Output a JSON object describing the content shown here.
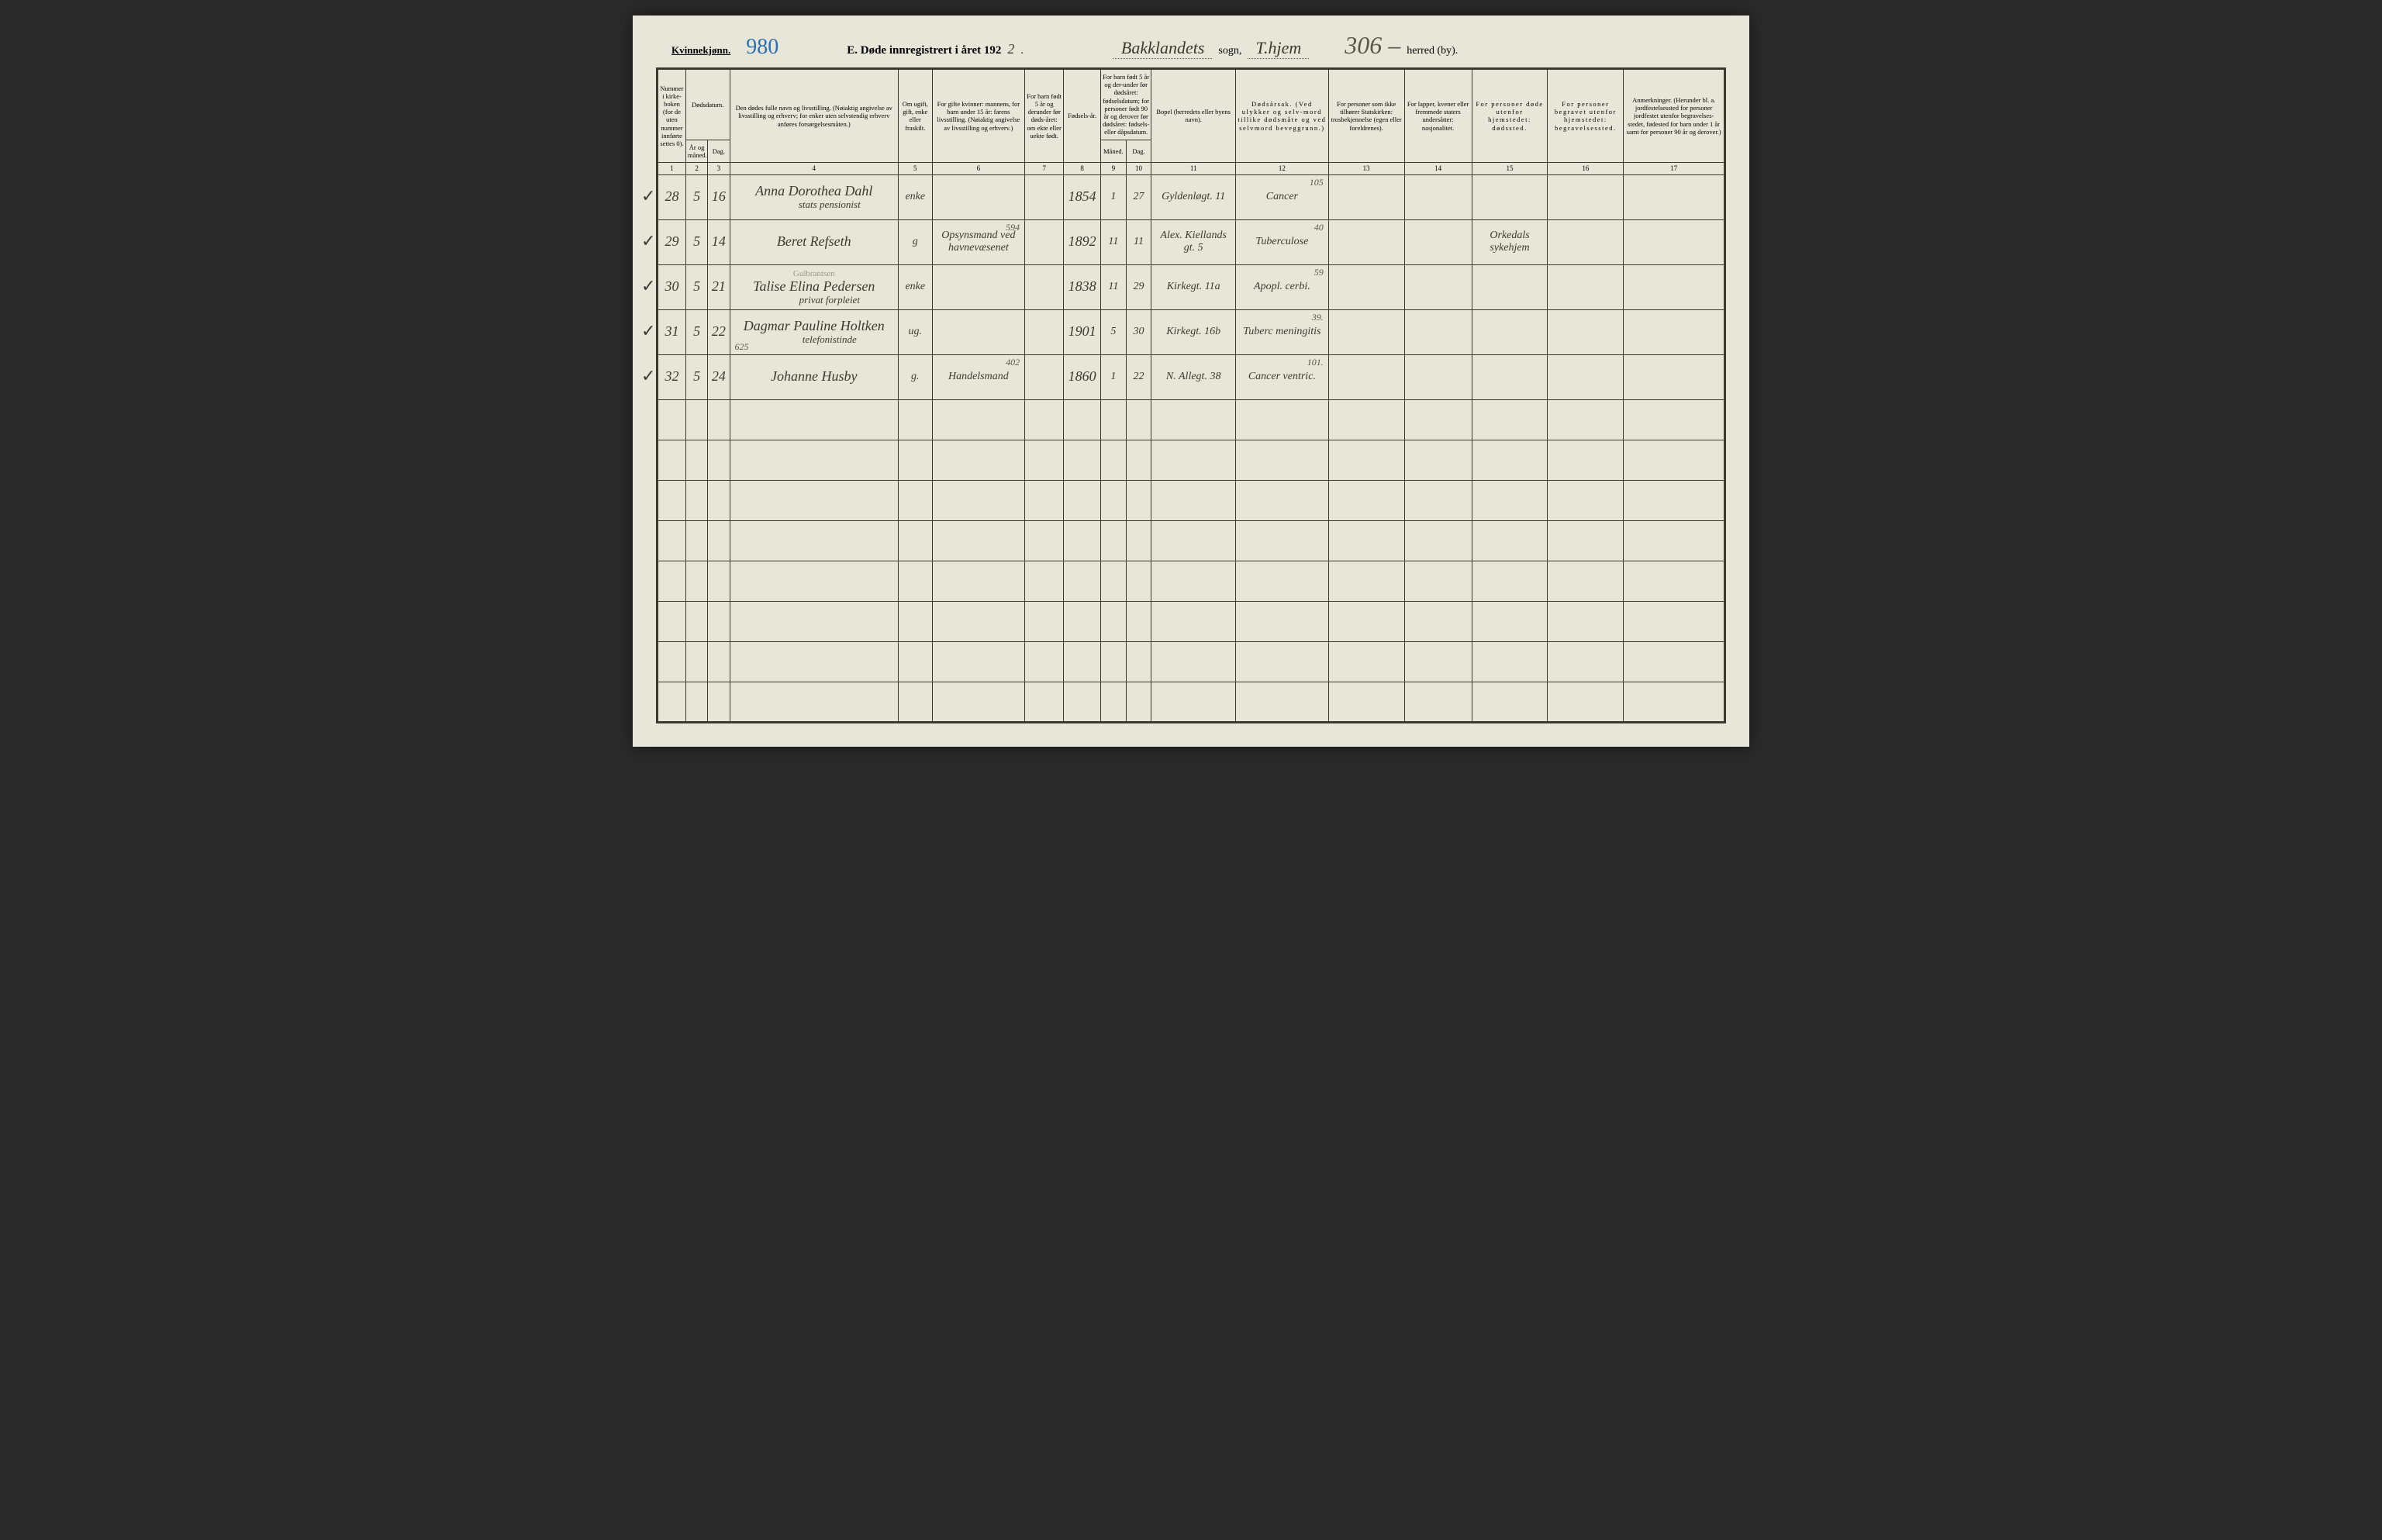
{
  "header": {
    "gender_label": "Kvinnekjønn.",
    "page_number_hw": "980",
    "title_prefix": "E.  Døde innregistrert i året 192",
    "year_suffix_hw": "2",
    "title_suffix": " .",
    "sogn_hw": "Bakklandets",
    "sogn_label": "sogn,",
    "herred_hw": "T.hjem",
    "top_right_hw": "306 –",
    "herred_label": "herred (by)."
  },
  "columns": {
    "c1": "Nummer i kirke-boken (for de uten nummer innførte settes 0).",
    "c23_top": "Dødsdatum.",
    "c2": "År og måned.",
    "c3": "Dag.",
    "c4": "Den dødes fulle navn og livsstilling. (Nøiaktig angivelse av livsstilling og erhverv; for enker uten selvstendig erhverv anføres forsørgelsesmåten.)",
    "c5": "Om ugift, gift, enke eller fraskilt.",
    "c6": "For gifte kvinner: mannens, for barn under 15 år: farens livsstilling. (Nøiaktig angivelse av livsstilling og erhverv.)",
    "c7": "For barn født 5 år og derunder før døds-året: om ekte eller uekte født.",
    "c8": "Fødsels-år.",
    "c910_top": "For barn født 5 år og der-under før dødsåret: fødselsdatum; for personer født 90 år og derover før dødsåret: fødsels- eller dåpsdatum.",
    "c9": "Måned.",
    "c10": "Dag.",
    "c11": "Bopel (herredets eller byens navn).",
    "c12": "Dødsårsak. (Ved ulykker og selv-mord tillike dødsmåte og ved selvmord beveggrunn.)",
    "c13": "For personer som ikke tilhører Statskirken: trosbekjennelse (egen eller foreldrenes).",
    "c14": "For lapper, kvener eller fremmede staters undersåtter: nasjonalitet.",
    "c15": "For personer døde utenfor hjemstedet: dødssted.",
    "c16": "For personer begravet utenfor hjemstedet: begravelsessted.",
    "c17": "Anmerkninger. (Herunder bl. a. jordfestelsessted for personer jordfestet utenfor begravelses-stedet, fødested for barn under 1 år samt for personer 90 år og derover.)"
  },
  "colnums": [
    "1",
    "2",
    "3",
    "4",
    "5",
    "6",
    "7",
    "8",
    "9",
    "10",
    "11",
    "12",
    "13",
    "14",
    "15",
    "16",
    "17"
  ],
  "rows": [
    {
      "check": "✓",
      "num": "28",
      "month": "5",
      "day": "16",
      "name": "Anna Dorothea Dahl",
      "name_sub": "stats pensionist",
      "status": "enke",
      "spouse": "",
      "note6": "",
      "c7": "",
      "birth": "1854",
      "bmonth": "1",
      "bday": "27",
      "bopel": "Gyldenløgt. 11",
      "cause": "Cancer",
      "cause_note": "105",
      "c15": ""
    },
    {
      "check": "✓",
      "num": "29",
      "month": "5",
      "day": "14",
      "name": "Beret Refseth",
      "name_sub": "",
      "status": "g",
      "spouse": "Opsynsmand ved havnevæsenet",
      "note6": "594",
      "c7": "",
      "birth": "1892",
      "bmonth": "11",
      "bday": "11",
      "bopel": "Alex. Kiellands gt. 5",
      "cause": "Tuberculose",
      "cause_note": "40",
      "c15": "Orkedals sykehjem"
    },
    {
      "check": "✓",
      "num": "30",
      "month": "5",
      "day": "21",
      "name": "Talise Elina Pedersen",
      "name_over": "Gulbrantsen",
      "name_sub": "privat forpleiet",
      "status": "enke",
      "spouse": "",
      "note6": "",
      "c7": "",
      "birth": "1838",
      "bmonth": "11",
      "bday": "29",
      "bopel": "Kirkegt. 11a",
      "cause": "Apopl. cerbi.",
      "cause_note": "59",
      "c15": ""
    },
    {
      "check": "✓",
      "num": "31",
      "month": "5",
      "day": "22",
      "name": "Dagmar Pauline Holtken",
      "name_sub": "telefonistinde",
      "name_note": "625",
      "status": "ug.",
      "spouse": "",
      "note6": "",
      "c7": "",
      "birth": "1901",
      "bmonth": "5",
      "bday": "30",
      "bopel": "Kirkegt. 16b",
      "cause": "Tuberc meningitis",
      "cause_note": "39.",
      "c15": ""
    },
    {
      "check": "✓",
      "num": "32",
      "month": "5",
      "day": "24",
      "name": "Johanne Husby",
      "name_sub": "",
      "status": "g.",
      "spouse": "Handelsmand",
      "note6": "402",
      "c7": "",
      "birth": "1860",
      "bmonth": "1",
      "bday": "22",
      "bopel": "N. Allegt. 38",
      "cause": "Cancer ventric.",
      "cause_note": "101.",
      "c15": ""
    }
  ],
  "col_widths": [
    "34",
    "26",
    "26",
    "200",
    "40",
    "110",
    "46",
    "44",
    "30",
    "30",
    "100",
    "110",
    "90",
    "80",
    "90",
    "90",
    "120"
  ]
}
